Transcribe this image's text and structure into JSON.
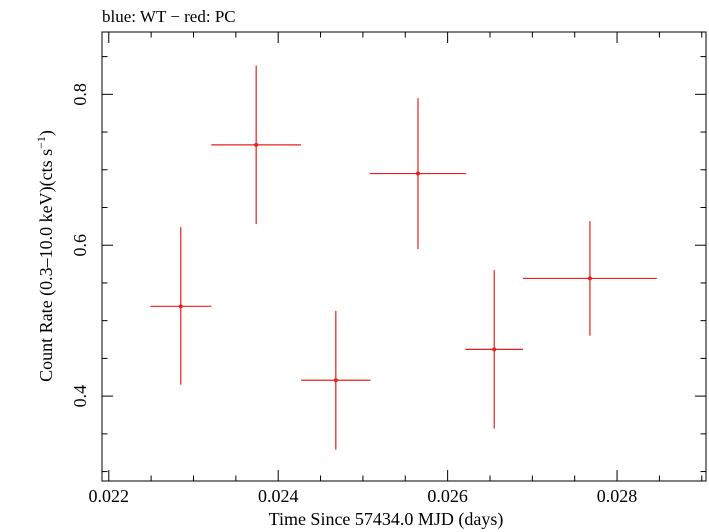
{
  "chart_data": {
    "type": "scatter",
    "title": "blue: WT − red: PC",
    "xlabel": "Time Since 57434.0 MJD (days)",
    "ylabel_main": "Count Rate (0.3–10.0 keV)(cts s",
    "ylabel_sup": "−1",
    "ylabel_end": ")",
    "xlim": [
      0.02192,
      0.02905
    ],
    "ylim": [
      0.2875,
      0.8826
    ],
    "x_ticks": [
      0.022,
      0.024,
      0.026,
      0.028
    ],
    "x_tick_labels": [
      "0.022",
      "0.024",
      "0.026",
      "0.028"
    ],
    "x_minor_step": 0.0005,
    "y_ticks": [
      0.4,
      0.6,
      0.8
    ],
    "y_tick_labels": [
      "0.4",
      "0.6",
      "0.8"
    ],
    "y_minor_step": 0.05,
    "grid": false,
    "series": [
      {
        "name": "PC",
        "color": "#e8201c",
        "points": [
          {
            "x": 0.02285,
            "xerr_lo": 0.00036,
            "xerr_hi": 0.00036,
            "y": 0.519,
            "yerr_lo": 0.104,
            "yerr_hi": 0.105
          },
          {
            "x": 0.02374,
            "xerr_lo": 0.00053,
            "xerr_hi": 0.00053,
            "y": 0.733,
            "yerr_lo": 0.105,
            "yerr_hi": 0.105
          },
          {
            "x": 0.02468,
            "xerr_lo": 0.00041,
            "xerr_hi": 0.00041,
            "y": 0.421,
            "yerr_lo": 0.092,
            "yerr_hi": 0.092
          },
          {
            "x": 0.02565,
            "xerr_lo": 0.00057,
            "xerr_hi": 0.00057,
            "y": 0.695,
            "yerr_lo": 0.1,
            "yerr_hi": 0.1
          },
          {
            "x": 0.02655,
            "xerr_lo": 0.00034,
            "xerr_hi": 0.00034,
            "y": 0.462,
            "yerr_lo": 0.105,
            "yerr_hi": 0.105
          },
          {
            "x": 0.02768,
            "xerr_lo": 0.00079,
            "xerr_hi": 0.00079,
            "y": 0.556,
            "yerr_lo": 0.076,
            "yerr_hi": 0.076
          }
        ]
      }
    ]
  }
}
